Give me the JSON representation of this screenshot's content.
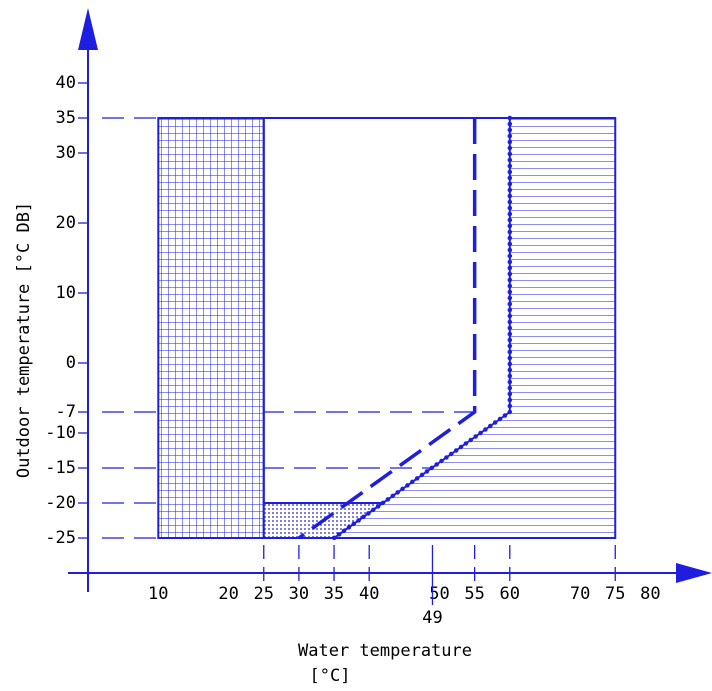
{
  "chart_data": {
    "type": "region",
    "y_label": "Outdoor temperature [°C DB]",
    "x_label": [
      "Water temperature",
      "[°C]"
    ],
    "color": "#1e1ee0",
    "xlim": [
      0,
      85
    ],
    "ylim": [
      -30,
      45
    ],
    "xticks": [
      10,
      20,
      25,
      30,
      35,
      40,
      50,
      55,
      60,
      70,
      75,
      80
    ],
    "xticks_low": [
      49
    ],
    "yticks": [
      40,
      35,
      30,
      20,
      10,
      0,
      -7,
      -10,
      -15,
      -20,
      -25
    ],
    "ygrid": [
      35,
      -7,
      -15,
      -20,
      -25
    ],
    "xgrid": [
      25,
      30,
      35,
      40,
      55,
      60,
      75
    ],
    "regions": [
      {
        "pattern": "grid",
        "x": [
          10,
          25,
          25,
          10
        ],
        "y": [
          -25,
          -25,
          35,
          35
        ]
      },
      {
        "pattern": "horizontal",
        "x": [
          60,
          75,
          75,
          35,
          60
        ],
        "y": [
          35,
          35,
          -25,
          -25,
          -7
        ]
      },
      {
        "pattern": "dots",
        "x": [
          25,
          41.9,
          35,
          25
        ],
        "y": [
          -20,
          -20,
          -25,
          -25
        ]
      },
      {
        "pattern": "none",
        "x": [
          25,
          25,
          60
        ],
        "y": [
          -20,
          35,
          35
        ]
      }
    ],
    "lines": [
      {
        "style": "dashed",
        "x": [
          55,
          55,
          30
        ],
        "y": [
          35,
          -7,
          -25
        ]
      },
      {
        "style": "dotted",
        "x": [
          60,
          60,
          35
        ],
        "y": [
          35,
          -7,
          -25
        ]
      }
    ]
  }
}
